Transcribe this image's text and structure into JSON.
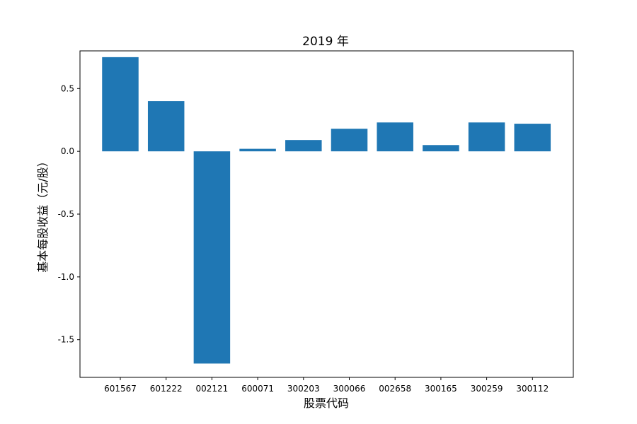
{
  "chart_data": {
    "type": "bar",
    "title": "2019 年",
    "xlabel": "股票代码",
    "ylabel": "基本每股收益（元/股）",
    "categories": [
      "601567",
      "601222",
      "002121",
      "600071",
      "300203",
      "300066",
      "002658",
      "300165",
      "300259",
      "300112"
    ],
    "values": [
      0.75,
      0.4,
      -1.69,
      0.02,
      0.09,
      0.18,
      0.23,
      0.05,
      0.23,
      0.22
    ],
    "ylim": [
      -1.8,
      0.8
    ],
    "yticks": [
      0.5,
      0.0,
      -0.5,
      -1.0,
      -1.5
    ],
    "ytick_labels": [
      "0.5",
      "0.0",
      "-0.5",
      "-1.0",
      "-1.5"
    ],
    "grid": false,
    "bar_color": "#1f77b4"
  }
}
